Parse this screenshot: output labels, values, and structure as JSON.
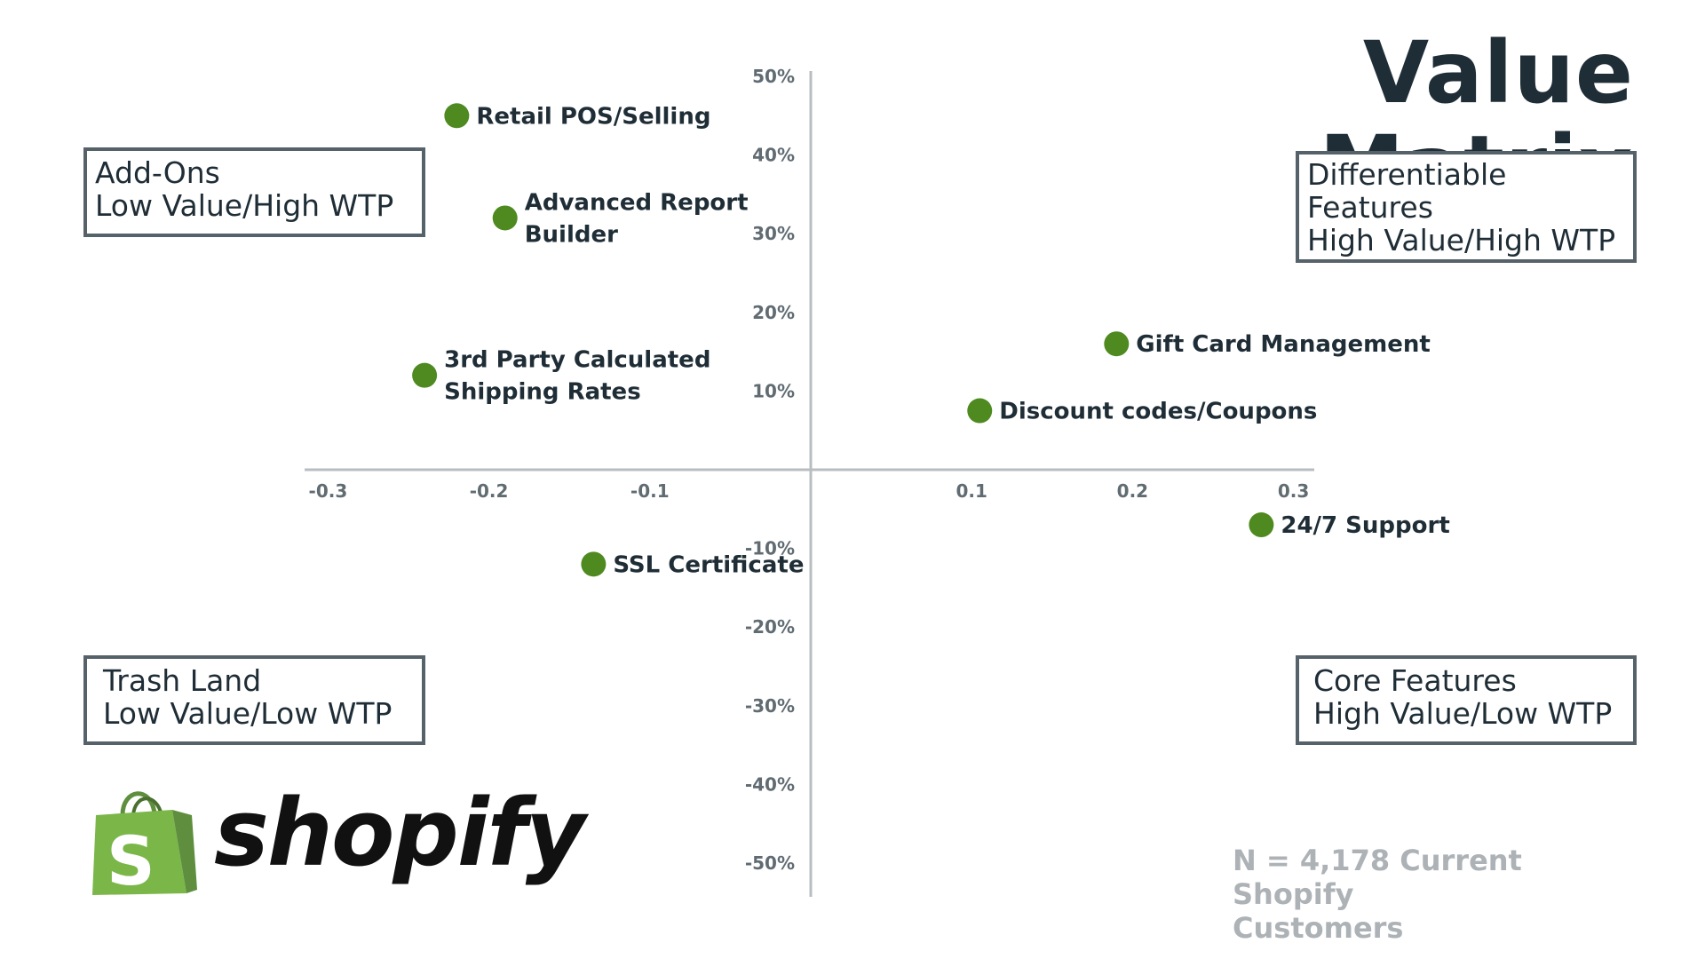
{
  "title": "Value Matrix",
  "quadrants": {
    "top_left": [
      "Add-Ons",
      "Low Value/High WTP"
    ],
    "top_right": [
      "Differentiable",
      "Features",
      "High Value/High WTP"
    ],
    "bottom_left": [
      "Trash Land",
      "Low Value/Low WTP"
    ],
    "bottom_right": [
      "Core Features",
      "High Value/Low WTP"
    ]
  },
  "note": [
    "N = 4,178 Current Shopify",
    "Customers"
  ],
  "logo": {
    "name": "shopify-logo",
    "text": "shopify",
    "bag_color": "#7ab648",
    "bag_dark": "#5e8e3e"
  },
  "colors": {
    "point": "#4e8a1f",
    "axis": "#b9bdc0",
    "text": "#1f2d36",
    "tick": "#606b72"
  },
  "chart_data": {
    "type": "scatter",
    "title": "Value Matrix",
    "xlabel": "",
    "ylabel": "",
    "xlim": [
      -0.33,
      0.31
    ],
    "ylim": [
      -0.55,
      0.52
    ],
    "x_ticks": [
      -0.3,
      -0.2,
      -0.1,
      0.1,
      0.2,
      0.3
    ],
    "x_tick_labels": [
      "-0.3",
      "-0.2",
      "-0.1",
      "0.1",
      "0.2",
      "0.3"
    ],
    "y_ticks": [
      0.5,
      0.4,
      0.3,
      0.2,
      0.1,
      -0.1,
      -0.2,
      -0.3,
      -0.4,
      -0.5
    ],
    "y_tick_labels": [
      "50%",
      "40%",
      "30%",
      "20%",
      "10%",
      "-10%",
      "-20%",
      "-30%",
      "-40%",
      "-50%"
    ],
    "grid": false,
    "points": [
      {
        "label": [
          "Retail POS/Selling"
        ],
        "x": -0.22,
        "y": 0.45
      },
      {
        "label": [
          "Advanced Report",
          "Builder"
        ],
        "x": -0.19,
        "y": 0.32
      },
      {
        "label": [
          "3rd Party Calculated",
          "Shipping Rates"
        ],
        "x": -0.24,
        "y": 0.12
      },
      {
        "label": [
          "Gift Card Management"
        ],
        "x": 0.19,
        "y": 0.16
      },
      {
        "label": [
          "Discount codes/Coupons"
        ],
        "x": 0.105,
        "y": 0.075
      },
      {
        "label": [
          "24/7 Support"
        ],
        "x": 0.28,
        "y": -0.07
      },
      {
        "label": [
          "SSL Certificate"
        ],
        "x": -0.135,
        "y": -0.12
      }
    ]
  }
}
